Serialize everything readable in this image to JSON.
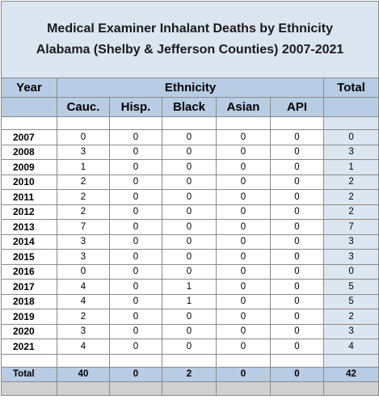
{
  "title": [
    "Medical Examiner Inhalant Deaths by Ethnicity",
    "Alabama (Shelby & Jefferson Counties) 2007-2021"
  ],
  "header": {
    "year": "Year",
    "ethnicity": "Ethnicity",
    "total": "Total"
  },
  "columns": [
    "Cauc.",
    "Hisp.",
    "Black",
    "Asian",
    "API"
  ],
  "rows": [
    [
      "2007",
      0,
      0,
      0,
      0,
      0,
      0
    ],
    [
      "2008",
      3,
      0,
      0,
      0,
      0,
      3
    ],
    [
      "2009",
      1,
      0,
      0,
      0,
      0,
      1
    ],
    [
      "2010",
      2,
      0,
      0,
      0,
      0,
      2
    ],
    [
      "2011",
      2,
      0,
      0,
      0,
      0,
      2
    ],
    [
      "2012",
      2,
      0,
      0,
      0,
      0,
      2
    ],
    [
      "2013",
      7,
      0,
      0,
      0,
      0,
      7
    ],
    [
      "2014",
      3,
      0,
      0,
      0,
      0,
      3
    ],
    [
      "2015",
      3,
      0,
      0,
      0,
      0,
      3
    ],
    [
      "2016",
      0,
      0,
      0,
      0,
      0,
      0
    ],
    [
      "2017",
      4,
      0,
      1,
      0,
      0,
      5
    ],
    [
      "2018",
      4,
      0,
      1,
      0,
      0,
      5
    ],
    [
      "2019",
      2,
      0,
      0,
      0,
      0,
      2
    ],
    [
      "2020",
      3,
      0,
      0,
      0,
      0,
      3
    ],
    [
      "2021",
      4,
      0,
      0,
      0,
      0,
      4
    ]
  ],
  "total_row": [
    "Total",
    40,
    0,
    2,
    0,
    0,
    42
  ]
}
